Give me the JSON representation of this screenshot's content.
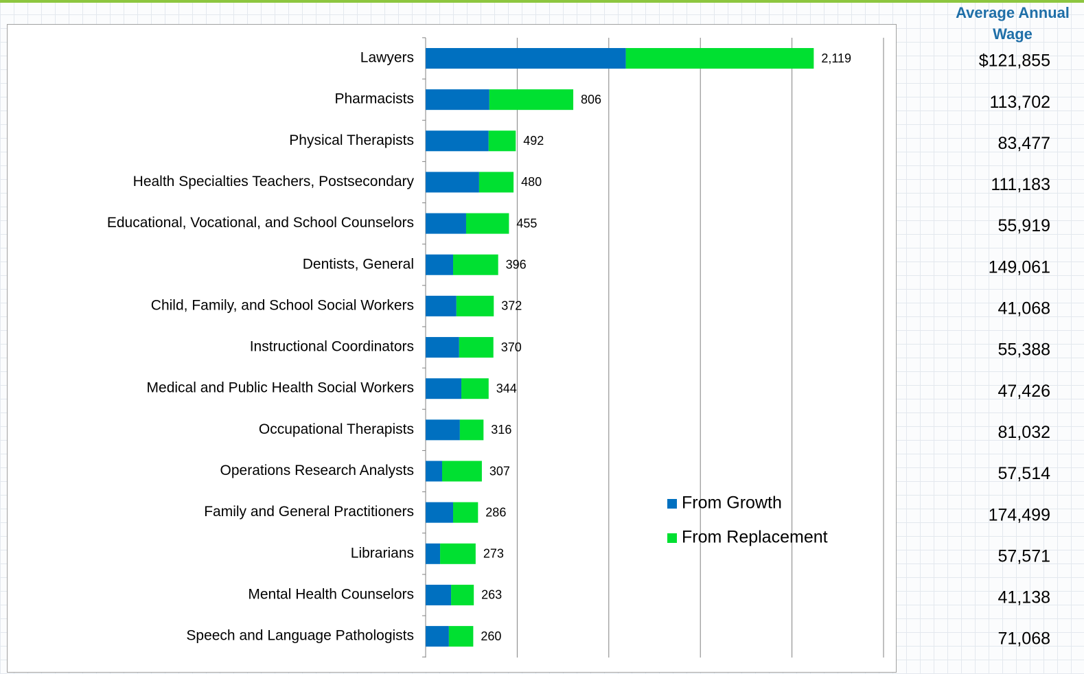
{
  "chart_data": {
    "type": "stacked_barh",
    "categories": [
      "Lawyers",
      "Pharmacists",
      "Physical Therapists",
      "Health Specialties Teachers, Postsecondary",
      "Educational, Vocational, and School Counselors",
      "Dentists, General",
      "Child, Family, and School Social Workers",
      "Instructional Coordinators",
      "Medical and Public Health Social Workers",
      "Occupational Therapists",
      "Operations Research Analysts",
      "Family and General Practitioners",
      "Librarians",
      "Mental Health Counselors",
      "Speech and Language Pathologists"
    ],
    "series": [
      {
        "name": "From Growth",
        "color": "#0070c0",
        "values": [
          1093,
          348,
          344,
          292,
          221,
          150,
          168,
          183,
          195,
          187,
          90,
          150,
          79,
          139,
          127
        ]
      },
      {
        "name": "From Replacement",
        "color": "#00e031",
        "values": [
          1026,
          458,
          148,
          188,
          234,
          246,
          204,
          187,
          149,
          129,
          217,
          136,
          194,
          124,
          133
        ]
      }
    ],
    "totals": [
      2119,
      806,
      492,
      480,
      455,
      396,
      372,
      370,
      344,
      316,
      307,
      286,
      273,
      263,
      260
    ],
    "value_labels": [
      "2,119",
      "806",
      "492",
      "480",
      "455",
      "396",
      "372",
      "370",
      "344",
      "316",
      "307",
      "286",
      "273",
      "263",
      "260"
    ],
    "xlim": [
      0,
      2500
    ],
    "xticks": [
      0,
      500,
      1000,
      1500,
      2000,
      2500
    ],
    "grid": true
  },
  "wage_table": {
    "header": "Average Annual Wage",
    "values": [
      "$121,855",
      "113,702",
      "83,477",
      "111,183",
      "55,919",
      "149,061",
      "41,068",
      "55,388",
      "47,426",
      "81,032",
      "57,514",
      "174,499",
      "57,571",
      "41,138",
      "71,068"
    ]
  }
}
